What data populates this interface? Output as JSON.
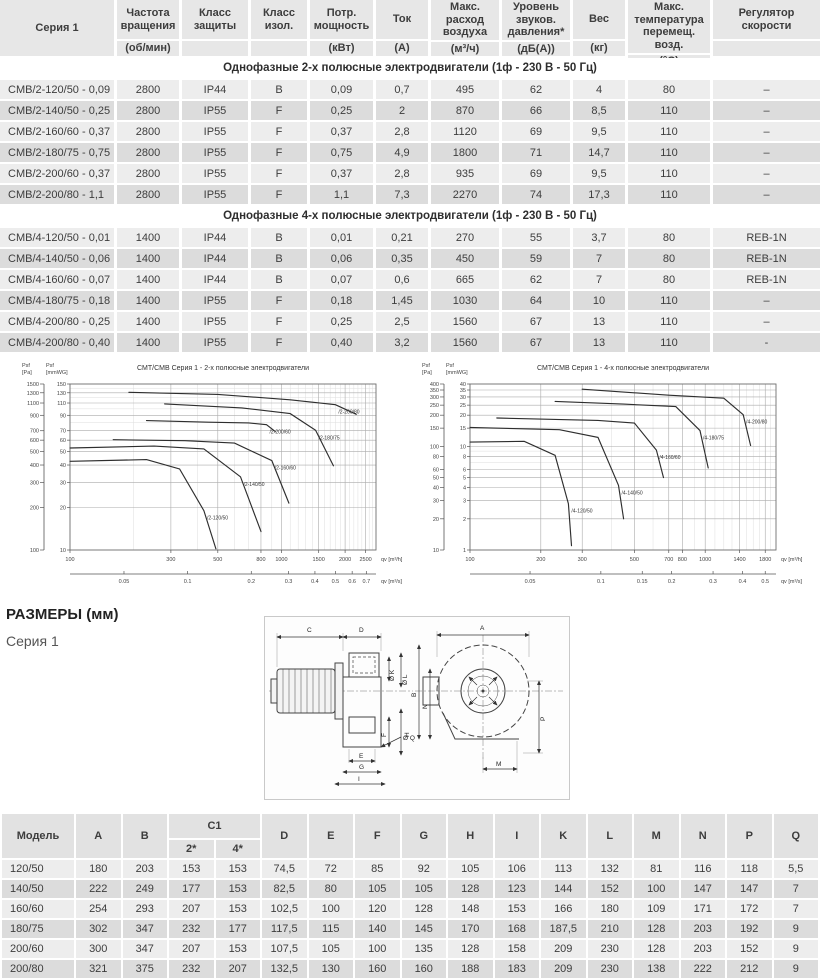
{
  "spec_table": {
    "headers": [
      {
        "label": "Серия 1",
        "unit": null
      },
      {
        "label": "Частота вращения",
        "unit": "(об/мин)"
      },
      {
        "label": "Класс защиты",
        "unit": ""
      },
      {
        "label": "Класс изол.",
        "unit": ""
      },
      {
        "label": "Потр. мощность",
        "unit": "(кВт)"
      },
      {
        "label": "Ток",
        "unit": "(А)"
      },
      {
        "label": "Макс. расход воздуха",
        "unit": "(м³/ч)"
      },
      {
        "label": "Уровень звуков. давления*",
        "unit": "(дБ(А))"
      },
      {
        "label": "Вес",
        "unit": "(кг)"
      },
      {
        "label": "Макс. температура перемещ. возд.",
        "unit": "(°С)"
      },
      {
        "label": "Регулятор скорости",
        "unit": ""
      }
    ],
    "sections": [
      {
        "title": "Однофазные 2-х полюсные электродвигатели (1ф - 230 В - 50 Гц)",
        "rows": [
          [
            "CMB/2-120/50 - 0,09",
            "2800",
            "IP44",
            "B",
            "0,09",
            "0,7",
            "495",
            "62",
            "4",
            "80",
            "–"
          ],
          [
            "CMB/2-140/50 - 0,25",
            "2800",
            "IP55",
            "F",
            "0,25",
            "2",
            "870",
            "66",
            "8,5",
            "110",
            "–"
          ],
          [
            "CMB/2-160/60 - 0,37",
            "2800",
            "IP55",
            "F",
            "0,37",
            "2,8",
            "1120",
            "69",
            "9,5",
            "110",
            "–"
          ],
          [
            "CMB/2-180/75 - 0,75",
            "2800",
            "IP55",
            "F",
            "0,75",
            "4,9",
            "1800",
            "71",
            "14,7",
            "110",
            "–"
          ],
          [
            "CMB/2-200/60 - 0,37",
            "2800",
            "IP55",
            "F",
            "0,37",
            "2,8",
            "935",
            "69",
            "9,5",
            "110",
            "–"
          ],
          [
            "CMB/2-200/80 - 1,1",
            "2800",
            "IP55",
            "F",
            "1,1",
            "7,3",
            "2270",
            "74",
            "17,3",
            "110",
            "–"
          ]
        ]
      },
      {
        "title": "Однофазные 4-х полюсные электродвигатели (1ф - 230 В - 50 Гц)",
        "rows": [
          [
            "CMB/4-120/50 - 0,01",
            "1400",
            "IP44",
            "B",
            "0,01",
            "0,21",
            "270",
            "55",
            "3,7",
            "80",
            "REB-1N"
          ],
          [
            "CMB/4-140/50 - 0,06",
            "1400",
            "IP44",
            "B",
            "0,06",
            "0,35",
            "450",
            "59",
            "7",
            "80",
            "REB-1N"
          ],
          [
            "CMB/4-160/60 - 0,07",
            "1400",
            "IP44",
            "B",
            "0,07",
            "0,6",
            "665",
            "62",
            "7",
            "80",
            "REB-1N"
          ],
          [
            "CMB/4-180/75 - 0,18",
            "1400",
            "IP55",
            "F",
            "0,18",
            "1,45",
            "1030",
            "64",
            "10",
            "110",
            "–"
          ],
          [
            "CMB/4-200/80 - 0,25",
            "1400",
            "IP55",
            "F",
            "0,25",
            "2,5",
            "1560",
            "67",
            "13",
            "110",
            "–"
          ],
          [
            "CMB/4-200/80 - 0,40",
            "1400",
            "IP55",
            "F",
            "0,40",
            "3,2",
            "1560",
            "67",
            "13",
            "110",
            "-"
          ]
        ]
      }
    ]
  },
  "chart_data": [
    {
      "type": "line",
      "title": "CMT/CMB  Серия 1 - 2-х полюсные электродвигатели",
      "y_axis_pa_lines": [
        "Psf",
        "[Pa]"
      ],
      "y_axis_mm_lines": [
        "Psf",
        "[mmWG]"
      ],
      "x_unit_h": "qv [m³/h]",
      "x_unit_s": "qv [m³/s]",
      "x_range": [
        100,
        2800
      ],
      "y_range_pa": [
        100,
        1500
      ],
      "x_ticks_h": [
        100,
        300,
        500,
        800,
        1000,
        1500,
        2000,
        2500
      ],
      "x_minor": [
        200,
        400,
        600,
        700,
        900,
        1100,
        1200,
        1300,
        1400,
        1600,
        1700,
        1800,
        1900,
        2100,
        2200,
        2300,
        2400,
        2600,
        2700
      ],
      "x_ticks_s": [
        0.05,
        0.1,
        0.2,
        0.3,
        0.4,
        0.5,
        0.6,
        0.7
      ],
      "y_ticks_pa": [
        100,
        200,
        300,
        400,
        500,
        600,
        700,
        900,
        1100,
        1300,
        1500
      ],
      "y_ticks_mm": [
        10,
        20,
        30,
        40,
        50,
        60,
        70,
        90,
        110,
        130,
        150
      ],
      "y_minor": [
        800,
        1000,
        1200,
        1400
      ],
      "grid": true,
      "legend_position": "on-curve",
      "xlabel": "qv [m³/h]",
      "ylabel": "Psf [Pa]",
      "series": [
        {
          "name": "/2-120/50",
          "points": [
            [
              100,
              425
            ],
            [
              230,
              437
            ],
            [
              330,
              375
            ],
            [
              430,
              190
            ],
            [
              490,
              102
            ]
          ]
        },
        {
          "name": "/2-140/50",
          "points": [
            [
              100,
              528
            ],
            [
              250,
              545
            ],
            [
              430,
              520
            ],
            [
              640,
              330
            ],
            [
              800,
              135
            ]
          ]
        },
        {
          "name": "/2-160/60",
          "points": [
            [
              160,
              605
            ],
            [
              350,
              595
            ],
            [
              600,
              572
            ],
            [
              900,
              430
            ],
            [
              1085,
              215
            ]
          ]
        },
        {
          "name": "/2-200/60",
          "points": [
            [
              230,
              825
            ],
            [
              450,
              805
            ],
            [
              700,
              795
            ],
            [
              850,
              772
            ],
            [
              935,
              690
            ]
          ]
        },
        {
          "name": "/2-180/75",
          "points": [
            [
              280,
              1085
            ],
            [
              650,
              1015
            ],
            [
              1100,
              925
            ],
            [
              1450,
              705
            ],
            [
              1760,
              395
            ]
          ]
        },
        {
          "name": "/2-200/80",
          "points": [
            [
              190,
              1310
            ],
            [
              500,
              1265
            ],
            [
              1100,
              1160
            ],
            [
              1800,
              1070
            ],
            [
              2260,
              915
            ]
          ]
        }
      ]
    },
    {
      "type": "line",
      "title": "CMT/CMB  Серия 1 - 4-х полюсные электродвигатели",
      "y_axis_pa_lines": [
        "Psf",
        "[Pa]"
      ],
      "y_axis_mm_lines": [
        "Psf",
        "[mmWG]"
      ],
      "x_unit_h": "qv [m³/h]",
      "x_unit_s": "qv [m³/s]",
      "x_range": [
        100,
        2000
      ],
      "y_range_pa": [
        10,
        400
      ],
      "x_ticks_h": [
        100,
        200,
        300,
        500,
        700,
        800,
        1000,
        1400,
        1800
      ],
      "x_minor": [
        400,
        600,
        900,
        1100,
        1200,
        1300,
        1500,
        1600,
        1700,
        1900
      ],
      "x_ticks_s": [
        0.05,
        0.1,
        0.15,
        0.2,
        0.3,
        0.4,
        0.5
      ],
      "y_ticks_pa": [
        10,
        20,
        30,
        40,
        50,
        60,
        80,
        100,
        150,
        200,
        250,
        300,
        350,
        400
      ],
      "y_ticks_mm": [
        1,
        2,
        3,
        4,
        5,
        6,
        8,
        10,
        15,
        20,
        25,
        30,
        35,
        40
      ],
      "y_minor": [
        70,
        90
      ],
      "grid": true,
      "legend_position": "on-curve",
      "xlabel": "qv [m³/h]",
      "ylabel": "Psf [Pa]",
      "series": [
        {
          "name": "/4-120/50",
          "points": [
            [
              100,
              110
            ],
            [
              170,
              112
            ],
            [
              230,
              82
            ],
            [
              262,
              28
            ],
            [
              270,
              11
            ]
          ]
        },
        {
          "name": "/4-140/50",
          "points": [
            [
              100,
              152
            ],
            [
              240,
              145
            ],
            [
              350,
              122
            ],
            [
              428,
              42
            ],
            [
              450,
              20
            ]
          ]
        },
        {
          "name": "/4-160/60",
          "points": [
            [
              130,
              188
            ],
            [
              350,
              178
            ],
            [
              500,
              168
            ],
            [
              620,
              92
            ],
            [
              665,
              50
            ]
          ]
        },
        {
          "name": "/4-180/75",
          "points": [
            [
              230,
              272
            ],
            [
              450,
              256
            ],
            [
              750,
              242
            ],
            [
              950,
              142
            ],
            [
              1030,
              62
            ]
          ]
        },
        {
          "name": "/4-200/80",
          "points": [
            [
              300,
              356
            ],
            [
              700,
              312
            ],
            [
              1200,
              292
            ],
            [
              1450,
              202
            ],
            [
              1560,
              102
            ]
          ]
        }
      ]
    }
  ],
  "dimensions": {
    "heading": "РАЗМЕРЫ (мм)",
    "subheading": "Серия 1",
    "drawing_labels": {
      "A": "A",
      "B": "B",
      "C": "C",
      "D": "D",
      "E": "E",
      "F": "F",
      "G": "G",
      "H": "H",
      "I": "I",
      "K": "Ø K",
      "L": "Ø L",
      "M": "M",
      "N": "N",
      "P": "P",
      "Q": "Ø Q"
    }
  },
  "dim_table": {
    "model_header": "Модель",
    "top_cols": [
      "A",
      "B"
    ],
    "c1": {
      "label": "C1",
      "sub": [
        "2*",
        "4*"
      ]
    },
    "top_cols2": [
      "D",
      "E",
      "F",
      "G",
      "H",
      "I",
      "K",
      "L",
      "M",
      "N",
      "P",
      "Q"
    ],
    "rows": [
      [
        "120/50",
        "180",
        "203",
        "153",
        "153",
        "74,5",
        "72",
        "85",
        "92",
        "105",
        "106",
        "113",
        "132",
        "81",
        "116",
        "118",
        "5,5"
      ],
      [
        "140/50",
        "222",
        "249",
        "177",
        "153",
        "82,5",
        "80",
        "105",
        "105",
        "128",
        "123",
        "144",
        "152",
        "100",
        "147",
        "147",
        "7"
      ],
      [
        "160/60",
        "254",
        "293",
        "207",
        "153",
        "102,5",
        "100",
        "120",
        "128",
        "148",
        "153",
        "166",
        "180",
        "109",
        "171",
        "172",
        "7"
      ],
      [
        "180/75",
        "302",
        "347",
        "232",
        "177",
        "117,5",
        "115",
        "140",
        "145",
        "170",
        "168",
        "187,5",
        "210",
        "128",
        "203",
        "192",
        "9"
      ],
      [
        "200/60",
        "300",
        "347",
        "207",
        "153",
        "107,5",
        "105",
        "100",
        "135",
        "128",
        "158",
        "209",
        "230",
        "128",
        "203",
        "152",
        "9"
      ],
      [
        "200/80",
        "321",
        "375",
        "232",
        "207",
        "132,5",
        "130",
        "160",
        "160",
        "188",
        "183",
        "209",
        "230",
        "138",
        "222",
        "212",
        "9"
      ]
    ]
  }
}
